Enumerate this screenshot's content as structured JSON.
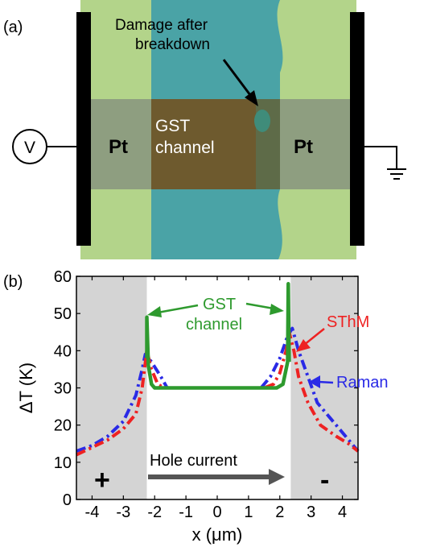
{
  "panel_a": {
    "label": "(a)",
    "voltage_symbol": "V",
    "left_electrode": "Pt",
    "right_electrode": "Pt",
    "channel_label_1": "GST",
    "channel_label_2": "channel",
    "damage_label_1": "Damage after",
    "damage_label_2": "breakdown"
  },
  "panel_b": {
    "label": "(b)",
    "plus_sign": "+",
    "minus_sign": "-",
    "current_label": "Hole current",
    "callout_gst_1": "GST",
    "callout_gst_2": "channel",
    "callout_sthm": "SThM",
    "callout_raman": "Raman"
  },
  "colors": {
    "gst": "#2e9a2e",
    "sthm": "#ee2222",
    "raman": "#2a2ae6",
    "shade": "#d4d4d4"
  },
  "chart_data": {
    "type": "line",
    "xlabel": "x (μm)",
    "ylabel": "ΔT (K)",
    "xlim": [
      -4.5,
      4.5
    ],
    "ylim": [
      0,
      60
    ],
    "xticks": [
      -4,
      -3,
      -2,
      -1,
      0,
      1,
      2,
      3,
      4
    ],
    "yticks": [
      0,
      10,
      20,
      30,
      40,
      50,
      60
    ],
    "shaded_regions": [
      [
        -4.5,
        -2.25
      ],
      [
        2.35,
        4.5
      ]
    ],
    "series": [
      {
        "name": "GST channel",
        "style": "solid",
        "x": [
          -2.25,
          -2.25,
          -2.2,
          -2.1,
          -2.0,
          1.9,
          2.1,
          2.25,
          2.27,
          2.3
        ],
        "y": [
          38,
          49,
          36,
          31,
          30,
          30,
          31,
          37,
          58,
          37
        ]
      },
      {
        "name": "SThM",
        "style": "dashdot",
        "x": [
          -4.5,
          -4.0,
          -3.5,
          -3.0,
          -2.6,
          -2.4,
          -2.25,
          -2.1,
          -1.9,
          -1.7,
          1.5,
          1.8,
          2.0,
          2.2,
          2.3,
          2.45,
          2.6,
          2.9,
          3.3,
          3.8,
          4.2,
          4.5
        ],
        "y": [
          12,
          14,
          16,
          19,
          23,
          30,
          40,
          35,
          31,
          30,
          30,
          31,
          34,
          40,
          45,
          40,
          33,
          26,
          20,
          17,
          15,
          13
        ]
      },
      {
        "name": "Raman",
        "style": "dashdot",
        "x": [
          -4.5,
          -4.0,
          -3.5,
          -3.0,
          -2.6,
          -2.4,
          -2.3,
          -2.1,
          -1.8,
          -1.6,
          1.4,
          1.7,
          2.0,
          2.25,
          2.4,
          2.6,
          2.9,
          3.2,
          3.6,
          4.0,
          4.5
        ],
        "y": [
          13,
          14.5,
          17,
          21,
          28,
          35,
          39,
          37,
          33,
          30,
          30,
          33,
          38,
          44,
          46,
          40,
          33,
          26,
          22,
          18,
          13
        ]
      }
    ]
  }
}
